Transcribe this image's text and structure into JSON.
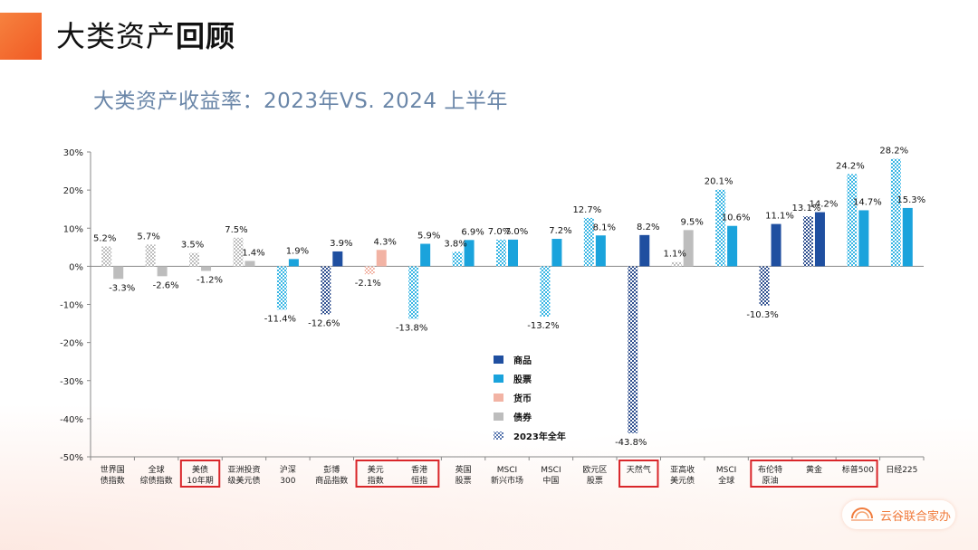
{
  "page": {
    "title_regular": "大类资产",
    "title_bold": "回顾"
  },
  "brand": {
    "name": "云谷联合家办"
  },
  "colors": {
    "commodity": "#1f4fa0",
    "equity": "#1aa3dc",
    "currency": "#f2b3a4",
    "bond": "#bdbdbd",
    "highlight_box": "#d9262a"
  },
  "chart_data": {
    "type": "bar",
    "title": "大类资产收益率：2023年VS. 2024 上半年",
    "ylim": [
      -50,
      30
    ],
    "yticks": [
      30,
      20,
      10,
      0,
      -10,
      -20,
      -30,
      -40,
      -50
    ],
    "ytick_labels": [
      "30%",
      "20%",
      "10%",
      "0%",
      "-10%",
      "-20%",
      "-30%",
      "-40%",
      "-50%"
    ],
    "legend": {
      "placement": "center-bottom",
      "entries": [
        {
          "label": "商品",
          "kind": "commodity"
        },
        {
          "label": "股票",
          "kind": "equity"
        },
        {
          "label": "货币",
          "kind": "currency"
        },
        {
          "label": "债券",
          "kind": "bond"
        },
        {
          "label": "2023年全年",
          "kind": "pattern"
        }
      ]
    },
    "categories": [
      {
        "label": "世界国\n债指数",
        "kind": "bond",
        "v2023": 5.2,
        "v2024": -3.3,
        "l2023": "5.2%",
        "l2024": "-3.3%",
        "boxed": false
      },
      {
        "label": "全球\n综债指数",
        "kind": "bond",
        "v2023": 5.7,
        "v2024": -2.6,
        "l2023": "5.7%",
        "l2024": "-2.6%",
        "boxed": false
      },
      {
        "label": "美债\n10年期",
        "kind": "bond",
        "v2023": 3.5,
        "v2024": -1.2,
        "l2023": "3.5%",
        "l2024": "-1.2%",
        "boxed": true
      },
      {
        "label": "亚洲投资\n级美元债",
        "kind": "bond",
        "v2023": 7.5,
        "v2024": 1.4,
        "l2023": "7.5%",
        "l2024": "1.4%",
        "boxed": false
      },
      {
        "label": "沪深\n300",
        "kind": "equity",
        "v2023": -11.4,
        "v2024": 1.9,
        "l2023": "-11.4%",
        "l2024": "1.9%",
        "boxed": false
      },
      {
        "label": "彭博\n商品指数",
        "kind": "commodity",
        "v2023": -12.6,
        "v2024": 3.9,
        "l2023": "-12.6%",
        "l2024": "3.9%",
        "boxed": false
      },
      {
        "label": "美元\n指数",
        "kind": "currency",
        "v2023": -2.1,
        "v2024": 4.3,
        "l2023": "-2.1%",
        "l2024": "4.3%",
        "boxed": true
      },
      {
        "label": "香港\n恒指",
        "kind": "equity",
        "v2023": -13.8,
        "v2024": 5.9,
        "l2023": "-13.8%",
        "l2024": "5.9%",
        "boxed": true
      },
      {
        "label": "英国\n股票",
        "kind": "equity",
        "v2023": 3.8,
        "v2024": 6.9,
        "l2023": "3.8%",
        "l2024": "6.9%",
        "boxed": false
      },
      {
        "label": "MSCI\n新兴市场",
        "kind": "equity",
        "v2023": 7.0,
        "v2024": 7.0,
        "l2023": "7.0%",
        "l2024": "7.0%",
        "boxed": false
      },
      {
        "label": "MSCI\n中国",
        "kind": "equity",
        "v2023": -13.2,
        "v2024": 7.2,
        "l2023": "-13.2%",
        "l2024": "7.2%",
        "boxed": false
      },
      {
        "label": "欧元区\n股票",
        "kind": "equity",
        "v2023": 12.7,
        "v2024": 8.1,
        "l2023": "12.7%",
        "l2024": "8.1%",
        "boxed": false
      },
      {
        "label": "天然气",
        "kind": "commodity",
        "v2023": -43.8,
        "v2024": 8.2,
        "l2023": "-43.8%",
        "l2024": "8.2%",
        "boxed": true
      },
      {
        "label": "亚高收\n美元债",
        "kind": "bond",
        "v2023": 1.1,
        "v2024": 9.5,
        "l2023": "1.1%",
        "l2024": "9.5%",
        "boxed": false
      },
      {
        "label": "MSCI\n全球",
        "kind": "equity",
        "v2023": 20.1,
        "v2024": 10.6,
        "l2023": "20.1%",
        "l2024": "10.6%",
        "boxed": false
      },
      {
        "label": "布伦特\n原油",
        "kind": "commodity",
        "v2023": -10.3,
        "v2024": 11.1,
        "l2023": "-10.3%",
        "l2024": "11.1%",
        "boxed": true
      },
      {
        "label": "黄金",
        "kind": "commodity",
        "v2023": 13.1,
        "v2024": 14.2,
        "l2023": "13.1%",
        "l2024": "14.2%",
        "boxed": true
      },
      {
        "label": "标普500",
        "kind": "equity",
        "v2023": 24.2,
        "v2024": 14.7,
        "l2023": "24.2%",
        "l2024": "14.7%",
        "boxed": true
      },
      {
        "label": "日经225",
        "kind": "equity",
        "v2023": 28.2,
        "v2024": 15.3,
        "l2023": "28.2%",
        "l2024": "15.3%",
        "boxed": false
      }
    ]
  }
}
